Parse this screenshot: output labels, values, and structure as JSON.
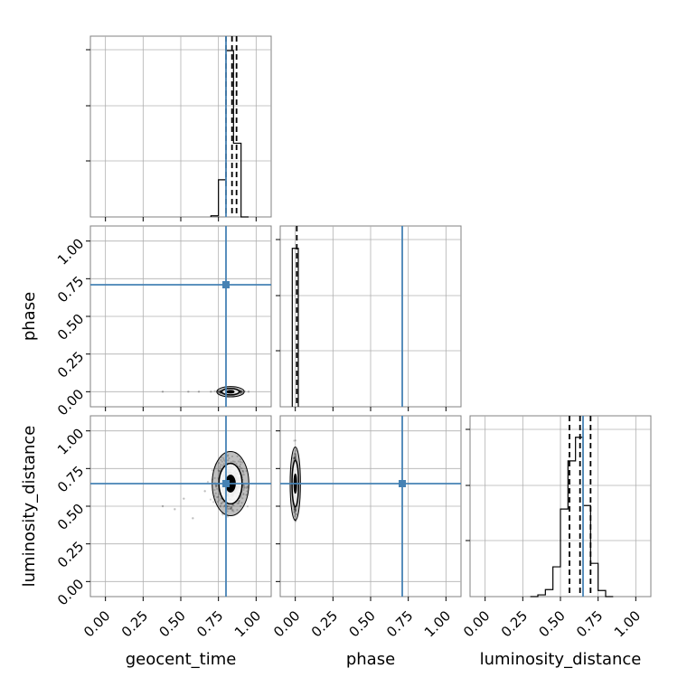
{
  "colors": {
    "truth": "#4682b4",
    "hist": "#000000",
    "grid": "#b0b0b0",
    "frame": "#808080"
  },
  "chart_data": {
    "type": "corner",
    "parameters": [
      "geocent_time",
      "phase",
      "luminosity_distance"
    ],
    "axis_range": [
      -0.1,
      1.1
    ],
    "ticks": [
      0.0,
      0.25,
      0.5,
      0.75,
      1.0
    ],
    "tick_labels": [
      "0.00",
      "0.25",
      "0.50",
      "0.75",
      "1.00"
    ],
    "grid": true,
    "truths": {
      "geocent_time": 0.8,
      "phase": 0.71,
      "luminosity_distance": 0.65
    },
    "quantiles": {
      "geocent_time": [
        0.8,
        0.84,
        0.87
      ],
      "phase": [
        0.01
      ],
      "luminosity_distance": [
        0.56,
        0.63,
        0.7
      ]
    },
    "histograms": {
      "geocent_time": {
        "bin_edges": [
          0.7,
          0.75,
          0.8,
          0.85,
          0.9,
          0.95
        ],
        "counts": [
          0.02,
          0.67,
          3.0,
          1.33,
          0.0
        ],
        "ylim": [
          0,
          3.0
        ]
      },
      "phase": {
        "bin_edges": [
          -0.02,
          0.0,
          0.02
        ],
        "counts": [
          1.0,
          1.0
        ],
        "ylim": [
          0,
          1.05
        ]
      },
      "luminosity_distance": {
        "bin_edges": [
          0.3,
          0.35,
          0.4,
          0.45,
          0.5,
          0.55,
          0.6,
          0.65,
          0.7,
          0.75,
          0.8,
          0.85
        ],
        "counts": [
          0.0,
          0.02,
          0.08,
          0.34,
          1.0,
          1.55,
          1.82,
          1.04,
          0.38,
          0.07,
          0.0
        ],
        "ylim": [
          0,
          1.9
        ]
      }
    },
    "panels_2d": [
      {
        "x": "geocent_time",
        "y": "phase",
        "center": [
          0.83,
          0.0
        ],
        "spread": [
          0.03,
          0.004
        ],
        "outliers": [
          [
            0.38,
            0.0
          ],
          [
            0.55,
            0.0
          ],
          [
            0.62,
            0.0
          ],
          [
            0.7,
            0.0
          ],
          [
            0.95,
            0.0
          ]
        ]
      },
      {
        "x": "geocent_time",
        "y": "luminosity_distance",
        "center": [
          0.83,
          0.65
        ],
        "spread": [
          0.04,
          0.07
        ],
        "outliers": [
          [
            0.38,
            0.5
          ],
          [
            0.46,
            0.48
          ],
          [
            0.52,
            0.55
          ],
          [
            0.58,
            0.42
          ],
          [
            0.66,
            0.6
          ]
        ]
      },
      {
        "x": "phase",
        "y": "luminosity_distance",
        "center": [
          0.0,
          0.65
        ],
        "spread": [
          0.004,
          0.08
        ],
        "outliers": []
      }
    ]
  }
}
